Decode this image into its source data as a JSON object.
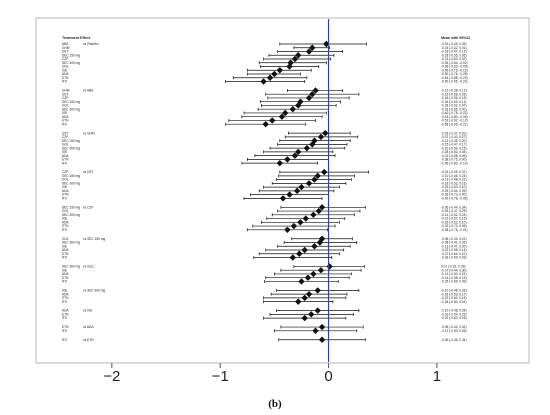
{
  "caption": "(b)",
  "chart_data": {
    "type": "forest",
    "left_header": "Treatment Effect",
    "right_header": "Mean with 95%CI",
    "x_ticks": [
      -2,
      -1,
      0,
      1
    ],
    "xlim": [
      -2.7,
      1.85
    ],
    "reference_line": 0,
    "reference_color": "#2b3fbf",
    "marker_color": "#111111",
    "groups": [
      {
        "comparator": "vs Placebo",
        "rows": [
          {
            "label": "ABA",
            "mean": -0.02,
            "lo": -0.45,
            "hi": 0.35
          },
          {
            "label": "GHM",
            "mean": -0.15,
            "lo": -0.32,
            "hi": 0.01
          },
          {
            "label": "UST",
            "mean": -0.18,
            "lo": -0.47,
            "hi": 0.13
          },
          {
            "label": "SEC 150 mg",
            "mean": -0.28,
            "lo": -0.55,
            "hi": 0.05
          },
          {
            "label": "CZP",
            "mean": -0.31,
            "lo": -0.6,
            "hi": 0.02
          },
          {
            "label": "SEC 300 mg",
            "mean": -0.35,
            "lo": -0.64,
            "hi": -0.02
          },
          {
            "label": "GOL",
            "mean": -0.36,
            "lo": -0.63,
            "hi": -0.09
          },
          {
            "label": "IXE",
            "mean": -0.45,
            "lo": -0.75,
            "hi": -0.16
          },
          {
            "label": "ADA",
            "mean": -0.5,
            "lo": -0.75,
            "hi": -0.26
          },
          {
            "label": "ETN",
            "mean": -0.54,
            "lo": -0.88,
            "hi": -0.2
          },
          {
            "label": "IFX",
            "mean": -0.6,
            "lo": -0.95,
            "hi": -0.22
          }
        ]
      },
      {
        "comparator": "vs ABA",
        "rows": [
          {
            "label": "GHM",
            "mean": -0.12,
            "lo": -0.38,
            "hi": 0.13
          },
          {
            "label": "UST",
            "mean": -0.15,
            "lo": -0.58,
            "hi": 0.28
          },
          {
            "label": "CZP",
            "mean": -0.18,
            "lo": -0.56,
            "hi": 0.19
          },
          {
            "label": "SEC 150 mg",
            "mean": -0.26,
            "lo": -0.63,
            "hi": 0.11
          },
          {
            "label": "GOL",
            "mean": -0.28,
            "lo": -0.62,
            "hi": 0.07
          },
          {
            "label": "SEC 300 mg",
            "mean": -0.33,
            "lo": -0.65,
            "hi": 0.0
          },
          {
            "label": "IXE",
            "mean": -0.4,
            "lo": -0.78,
            "hi": -0.02
          },
          {
            "label": "ADA",
            "mean": -0.43,
            "lo": -0.8,
            "hi": -0.06
          },
          {
            "label": "ETN",
            "mean": -0.52,
            "lo": -0.92,
            "hi": -0.12
          },
          {
            "label": "IFX",
            "mean": -0.58,
            "lo": -0.95,
            "hi": -0.21
          }
        ]
      },
      {
        "comparator": "vs GHM",
        "rows": [
          {
            "label": "UST",
            "mean": -0.03,
            "lo": -0.37,
            "hi": 0.2
          },
          {
            "label": "CZP",
            "mean": -0.07,
            "lo": -0.4,
            "hi": 0.27
          },
          {
            "label": "SEC 150 mg",
            "mean": -0.13,
            "lo": -0.45,
            "hi": 0.2
          },
          {
            "label": "GOL",
            "mean": -0.15,
            "lo": -0.47,
            "hi": 0.17
          },
          {
            "label": "SEC 300 mg",
            "mean": -0.2,
            "lo": -0.54,
            "hi": 0.15
          },
          {
            "label": "IXE",
            "mean": -0.28,
            "lo": -0.6,
            "hi": 0.04
          },
          {
            "label": "ADA",
            "mean": -0.31,
            "lo": -0.68,
            "hi": 0.06
          },
          {
            "label": "ETN",
            "mean": -0.38,
            "lo": -0.75,
            "hi": 0.0
          },
          {
            "label": "IFX",
            "mean": -0.45,
            "lo": -0.8,
            "hi": -0.1
          }
        ]
      },
      {
        "comparator": "vs UST",
        "rows": [
          {
            "label": "CZP",
            "mean": -0.04,
            "lo": -0.45,
            "hi": 0.37
          },
          {
            "label": "SEC 150 mg",
            "mean": -0.1,
            "lo": -0.46,
            "hi": 0.24
          },
          {
            "label": "GOL",
            "mean": -0.13,
            "lo": -0.48,
            "hi": 0.21
          },
          {
            "label": "SEC 300 mg",
            "mean": -0.18,
            "lo": -0.52,
            "hi": 0.16
          },
          {
            "label": "IXE",
            "mean": -0.25,
            "lo": -0.6,
            "hi": 0.1
          },
          {
            "label": "ADA",
            "mean": -0.29,
            "lo": -0.64,
            "hi": 0.05
          },
          {
            "label": "ETN",
            "mean": -0.36,
            "lo": -0.72,
            "hi": 0.0
          },
          {
            "label": "IFX",
            "mean": -0.42,
            "lo": -0.78,
            "hi": -0.06
          }
        ]
      },
      {
        "comparator": "vs CZP",
        "rows": [
          {
            "label": "SEC 150 mg",
            "mean": -0.06,
            "lo": -0.44,
            "hi": 0.34
          },
          {
            "label": "GOL",
            "mean": -0.09,
            "lo": -0.47,
            "hi": 0.29
          },
          {
            "label": "SEC 300 mg",
            "mean": -0.14,
            "lo": -0.52,
            "hi": 0.24
          },
          {
            "label": "IXE",
            "mean": -0.21,
            "lo": -0.57,
            "hi": 0.15
          },
          {
            "label": "ADA",
            "mean": -0.26,
            "lo": -0.62,
            "hi": 0.1
          },
          {
            "label": "ETN",
            "mean": -0.32,
            "lo": -0.7,
            "hi": 0.06
          },
          {
            "label": "IFX",
            "mean": -0.38,
            "lo": -0.75,
            "hi": -0.01
          }
        ]
      },
      {
        "comparator": "vs SEC 150 mg",
        "rows": [
          {
            "label": "GOL",
            "mean": -0.06,
            "lo": -0.34,
            "hi": 0.22
          },
          {
            "label": "SEC 300 mg",
            "mean": -0.08,
            "lo": -0.41,
            "hi": 0.26
          },
          {
            "label": "IXE",
            "mean": -0.13,
            "lo": -0.47,
            "hi": 0.2
          },
          {
            "label": "ADA",
            "mean": -0.22,
            "lo": -0.58,
            "hi": 0.14
          },
          {
            "label": "ETN",
            "mean": -0.27,
            "lo": -0.64,
            "hi": 0.1
          },
          {
            "label": "IFX",
            "mean": -0.33,
            "lo": -0.69,
            "hi": 0.03
          }
        ]
      },
      {
        "comparator": "vs GOL",
        "rows": [
          {
            "label": "SEC 300 mg",
            "mean": 0.01,
            "lo": -0.32,
            "hi": 0.33
          },
          {
            "label": "IXE",
            "mean": -0.07,
            "lo": -0.44,
            "hi": 0.3
          },
          {
            "label": "ADA",
            "mean": -0.14,
            "lo": -0.5,
            "hi": 0.21
          },
          {
            "label": "ETN",
            "mean": -0.19,
            "lo": -0.58,
            "hi": 0.19
          },
          {
            "label": "IFX",
            "mean": -0.25,
            "lo": -0.59,
            "hi": 0.09
          }
        ]
      },
      {
        "comparator": "vs SEC 300 mg",
        "rows": [
          {
            "label": "IXE",
            "mean": -0.1,
            "lo": -0.48,
            "hi": 0.28
          },
          {
            "label": "ADA",
            "mean": -0.18,
            "lo": -0.53,
            "hi": 0.17
          },
          {
            "label": "ETN",
            "mean": -0.22,
            "lo": -0.6,
            "hi": 0.16
          },
          {
            "label": "IFX",
            "mean": -0.28,
            "lo": -0.6,
            "hi": 0.04
          }
        ]
      },
      {
        "comparator": "vs IXE",
        "rows": [
          {
            "label": "ADA",
            "mean": -0.1,
            "lo": -0.48,
            "hi": 0.28
          },
          {
            "label": "ETN",
            "mean": -0.16,
            "lo": -0.54,
            "hi": 0.23
          },
          {
            "label": "IFX",
            "mean": -0.22,
            "lo": -0.6,
            "hi": 0.16
          }
        ]
      },
      {
        "comparator": "vs ADA",
        "rows": [
          {
            "label": "ETN",
            "mean": -0.06,
            "lo": -0.44,
            "hi": 0.32
          },
          {
            "label": "IFX",
            "mean": -0.12,
            "lo": -0.5,
            "hi": 0.26
          }
        ]
      },
      {
        "comparator": "vs ETN",
        "rows": [
          {
            "label": "IFX",
            "mean": -0.06,
            "lo": -0.46,
            "hi": 0.34
          }
        ]
      }
    ]
  }
}
